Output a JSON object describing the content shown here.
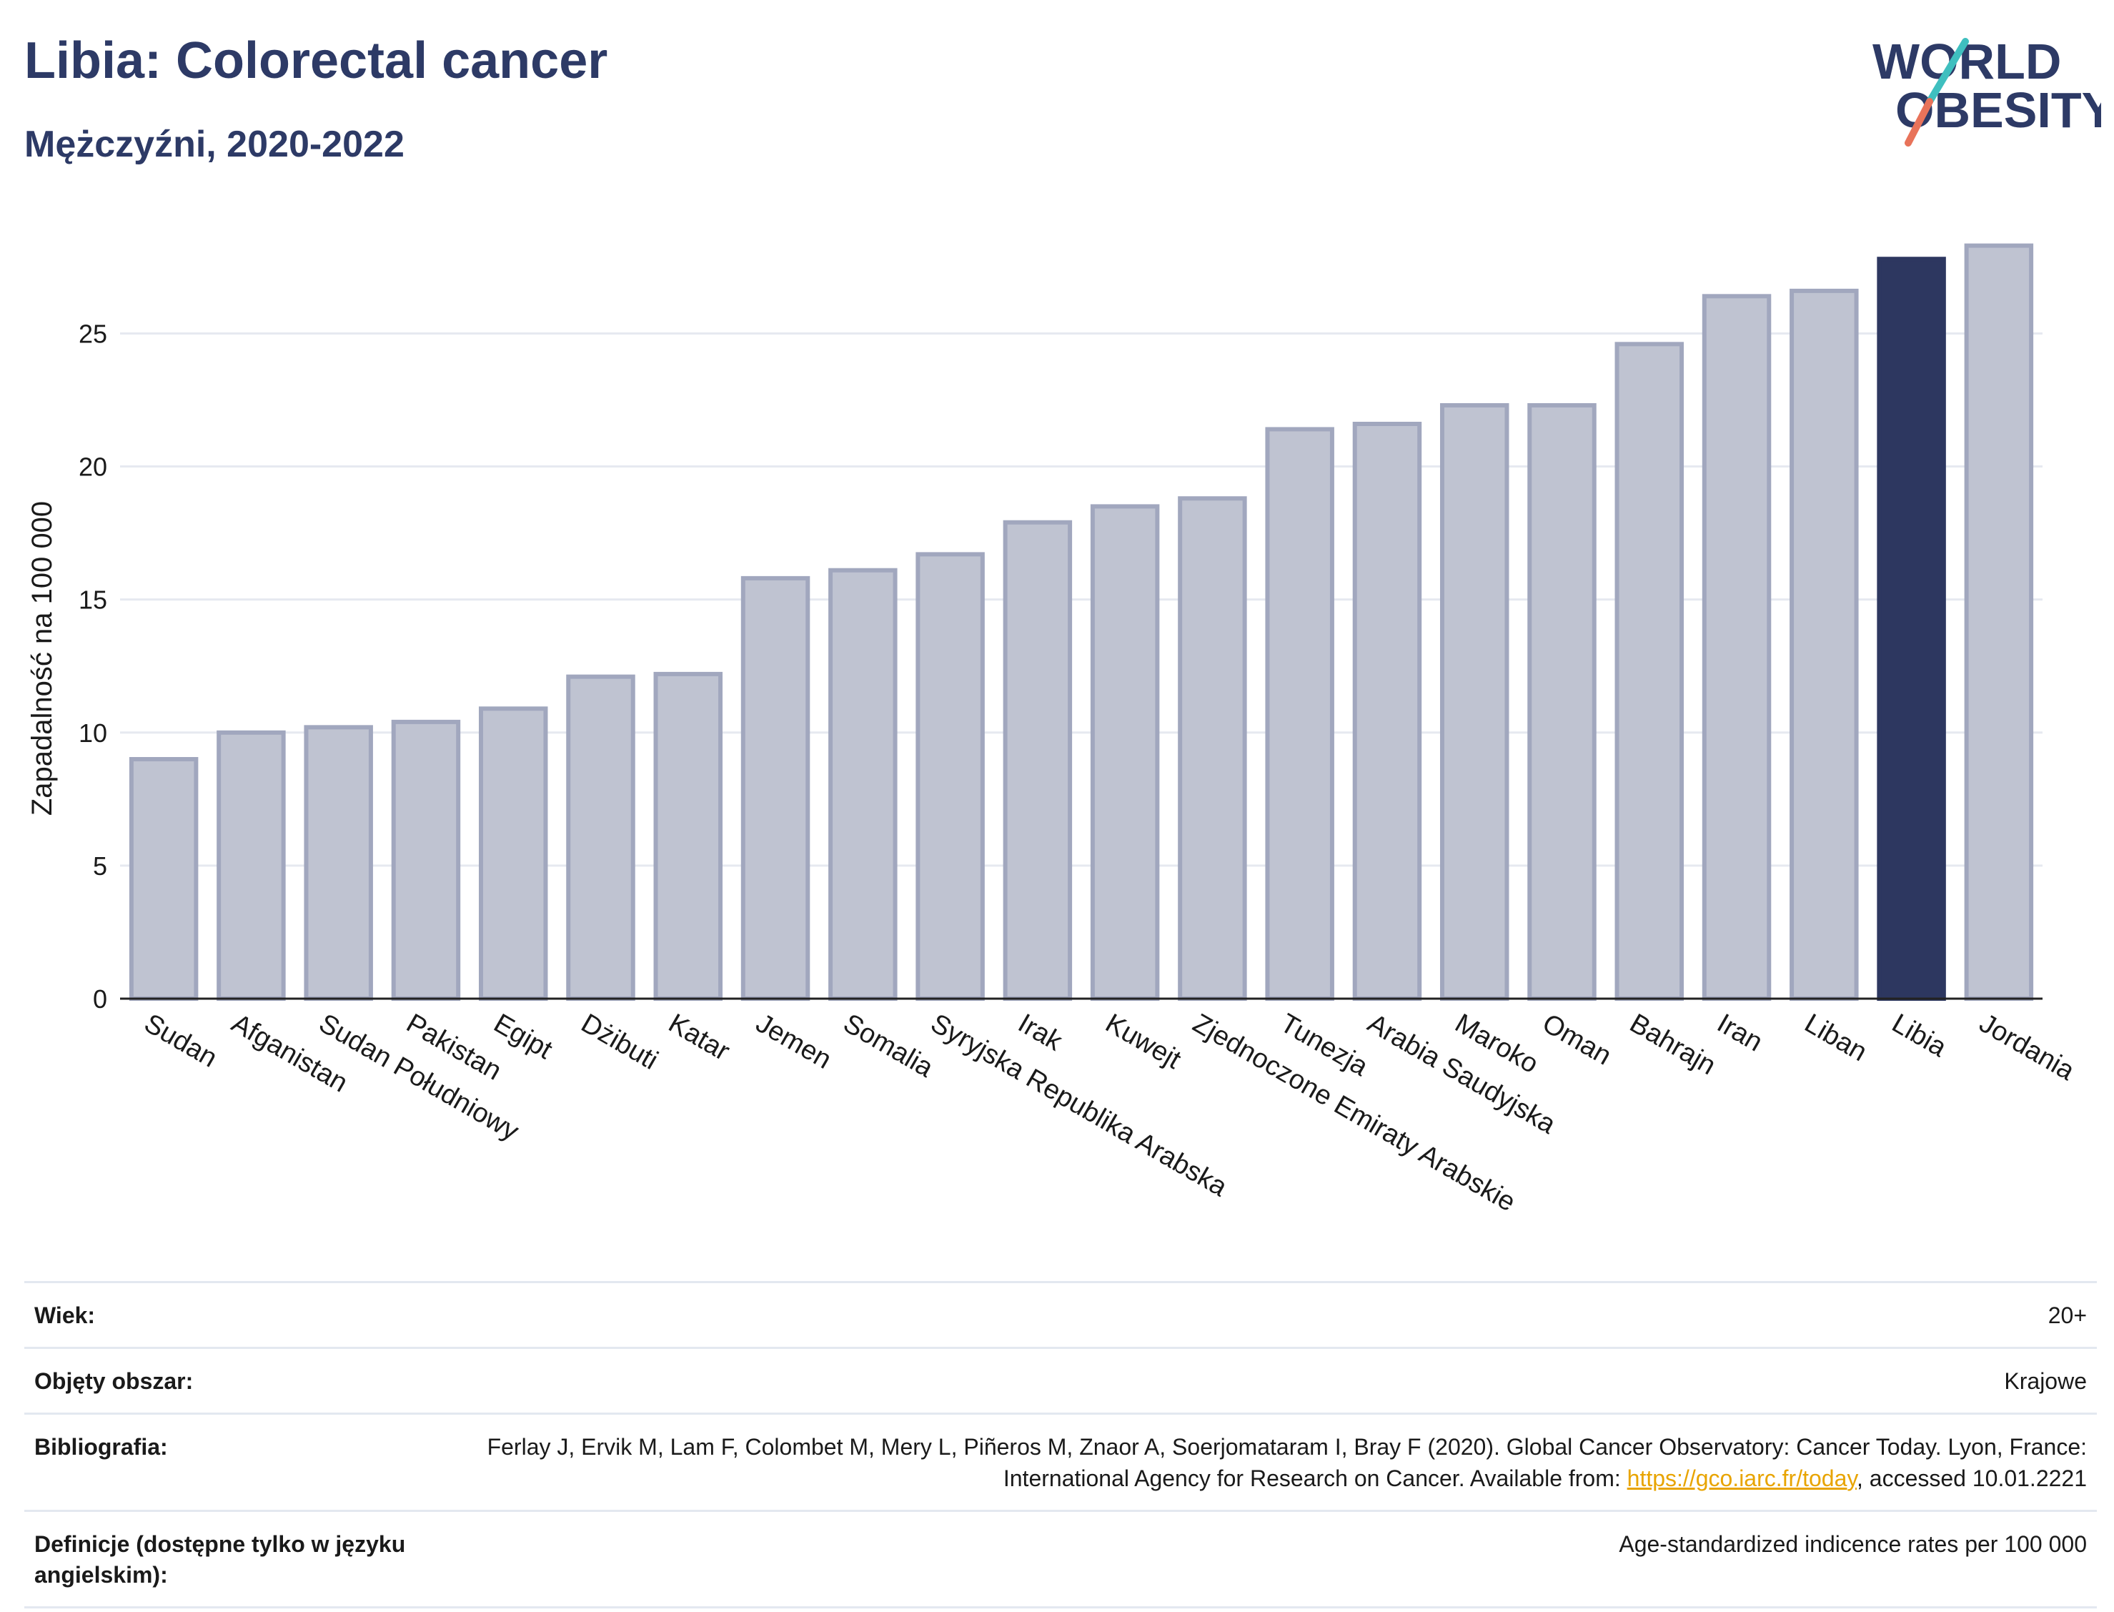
{
  "header": {
    "title": "Libia: Colorectal cancer",
    "subtitle": "Mężczyźni, 2020-2022"
  },
  "logo": {
    "line1": "WORLD",
    "line2": "OBESITY"
  },
  "colors": {
    "bar": "#bfc3d1",
    "bar_border": "#a1a7be",
    "highlight": "#2d3760",
    "title": "#2d3a66"
  },
  "chart_data": {
    "type": "bar",
    "ylabel": "Zapadalność na 100 000",
    "xlabel": "",
    "ylim": [
      0,
      28.8
    ],
    "yticks": [
      0,
      5,
      10,
      15,
      20,
      25
    ],
    "grid": true,
    "highlight": "Libia",
    "categories": [
      "Sudan",
      "Afganistan",
      "Sudan Południowy",
      "Pakistan",
      "Egipt",
      "Dżibuti",
      "Katar",
      "Jemen",
      "Somalia",
      "Syryjska Republika Arabska",
      "Irak",
      "Kuwejt",
      "Zjednoczone Emiraty Arabskie",
      "Tunezja",
      "Arabia Saudyjska",
      "Maroko",
      "Oman",
      "Bahrajn",
      "Iran",
      "Liban",
      "Libia",
      "Jordania"
    ],
    "values": [
      9.0,
      10.0,
      10.2,
      10.4,
      10.9,
      12.1,
      12.2,
      15.8,
      16.1,
      16.7,
      17.9,
      18.5,
      18.8,
      21.4,
      21.6,
      22.3,
      22.3,
      24.6,
      26.4,
      26.6,
      27.8,
      28.3
    ]
  },
  "meta": [
    {
      "key": "Wiek:",
      "value": "20+"
    },
    {
      "key": "Objęty obszar:",
      "value": "Krajowe"
    },
    {
      "key": "Bibliografia:",
      "value_pre": "Ferlay J, Ervik M, Lam F, Colombet M, Mery L, Piñeros M, Znaor A, Soerjomataram I, Bray F (2020). Global Cancer Observatory: Cancer Today. Lyon, France: International Agency for Research on Cancer. Available from: ",
      "link": "https://gco.iarc.fr/today",
      "value_post": ", accessed 10.01.2221"
    },
    {
      "key": "Definicje (dostępne tylko w języku angielskim):",
      "value": "Age-standardized indicence rates per 100 000"
    }
  ]
}
